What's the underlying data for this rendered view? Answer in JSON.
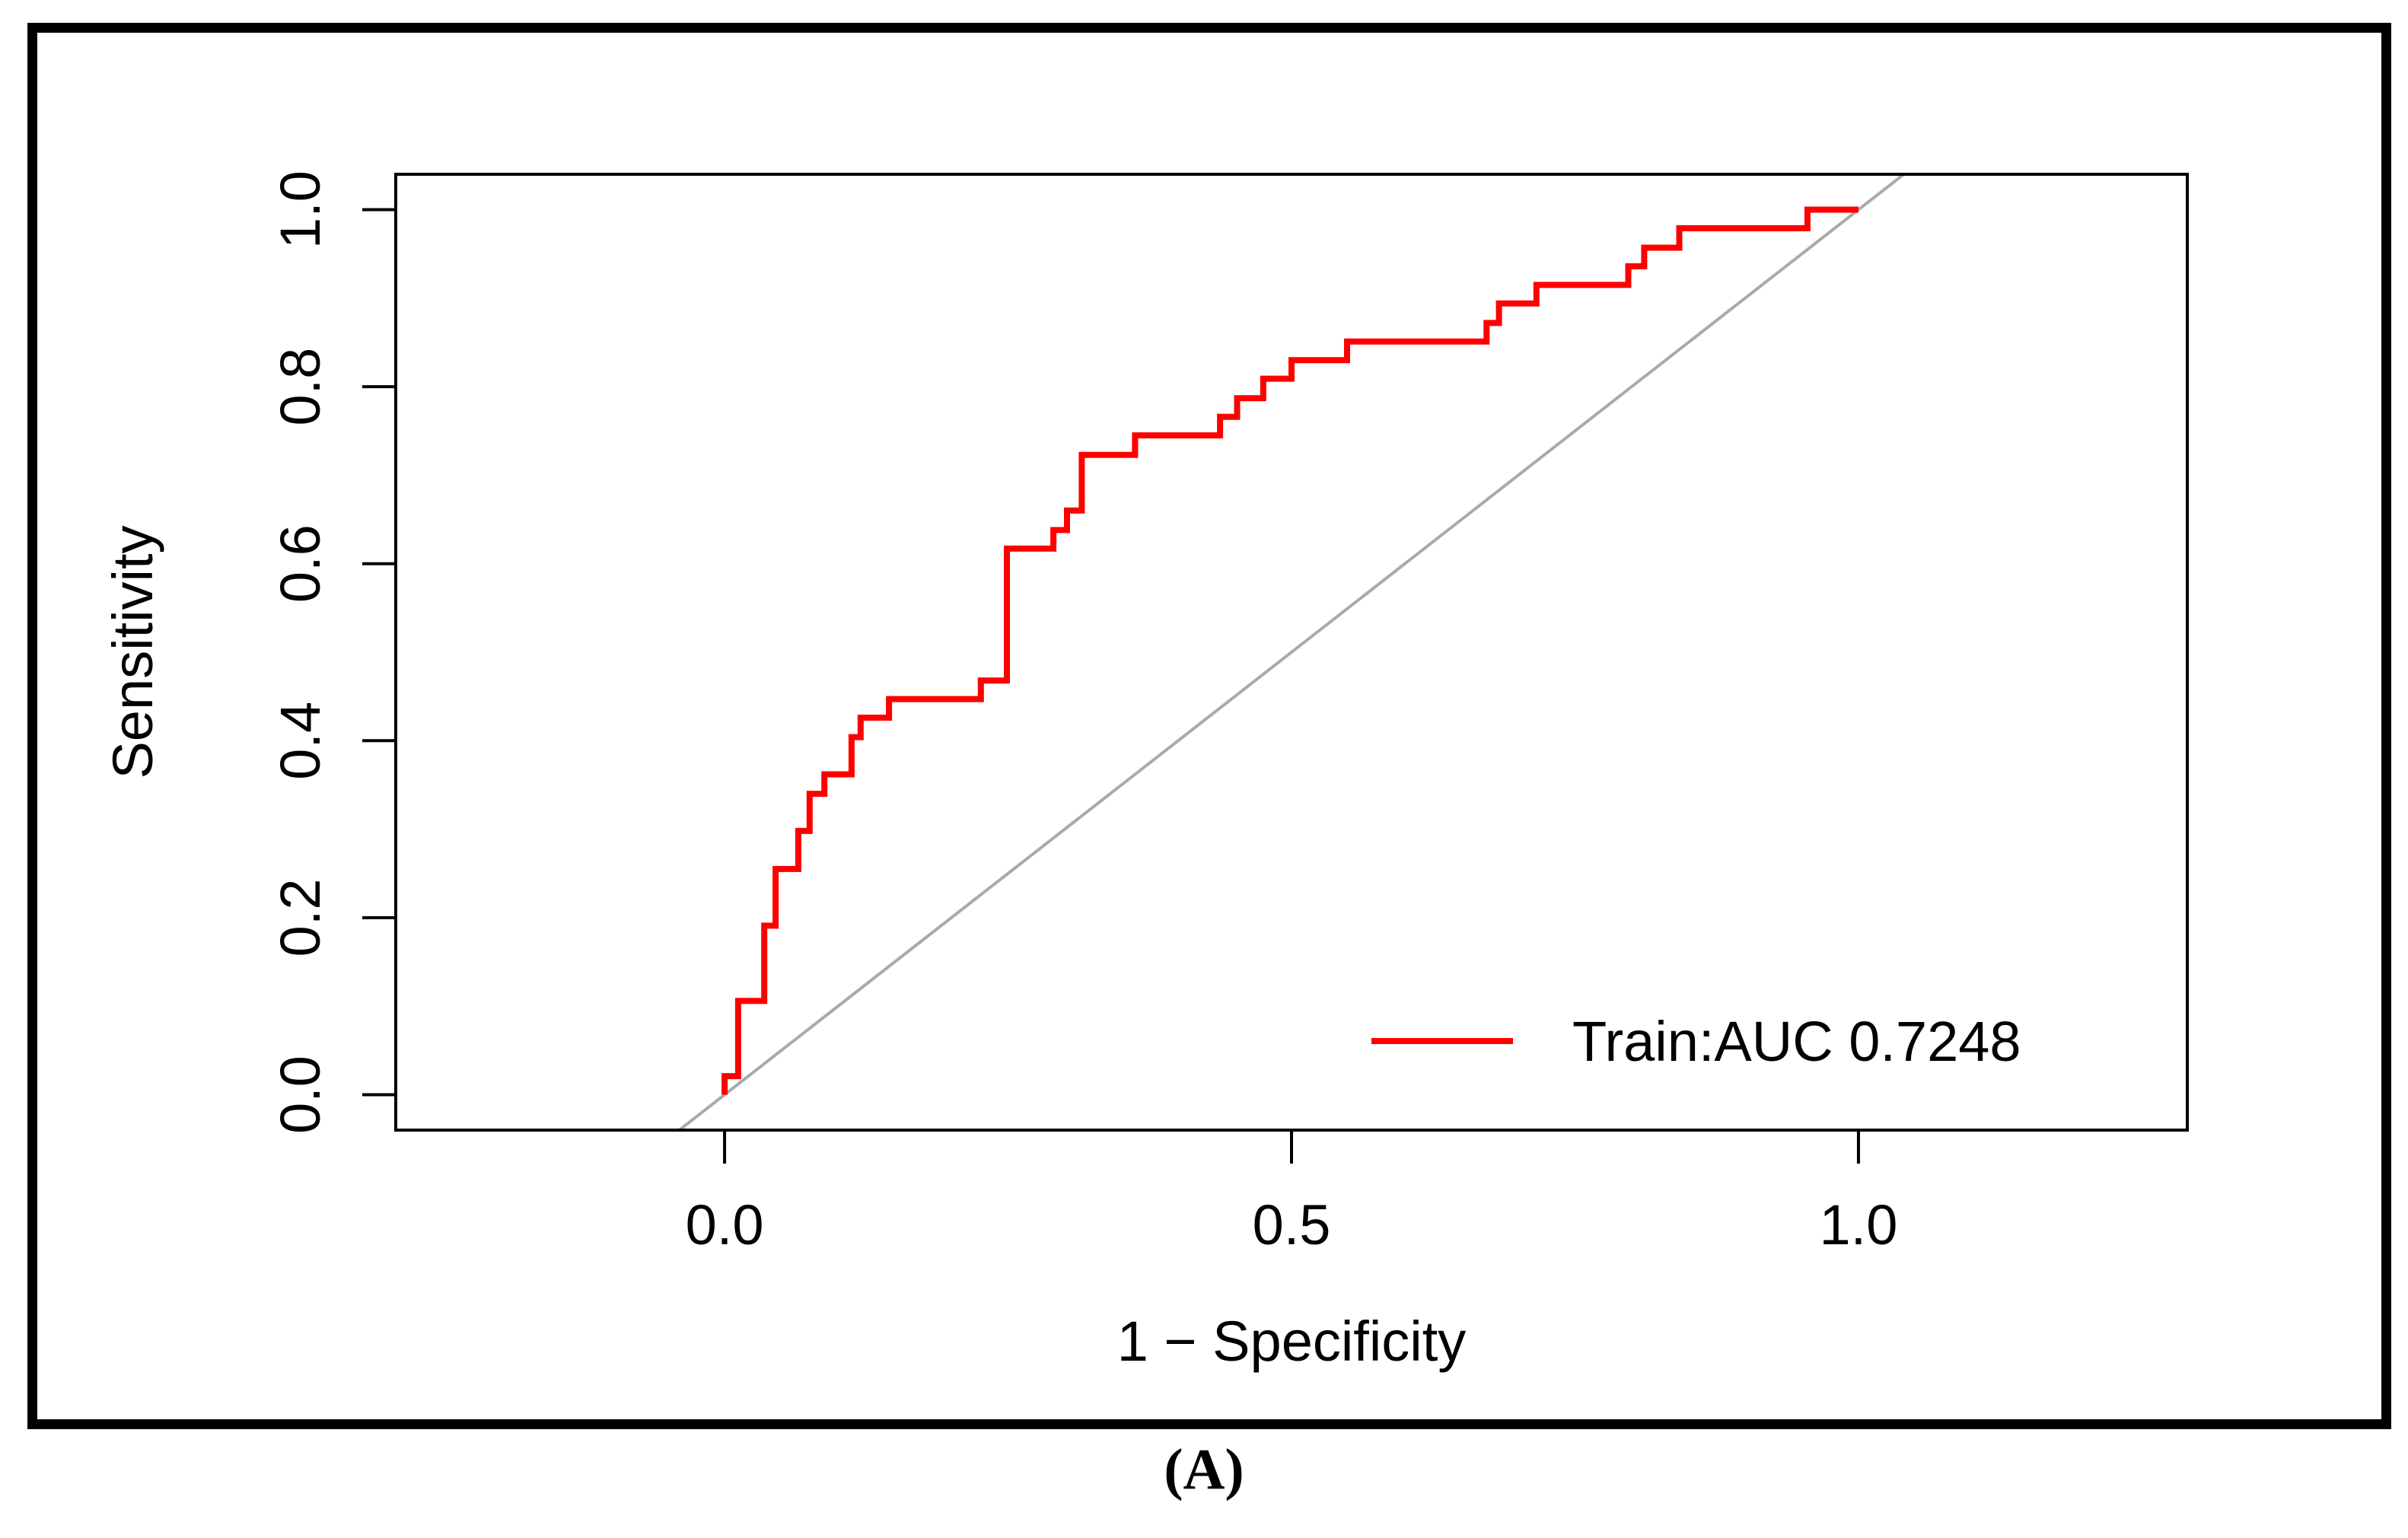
{
  "figure": {
    "caption": "(A)"
  },
  "chart_data": {
    "type": "line",
    "title": "",
    "xlabel": "1 − Specificity",
    "ylabel": "Sensitivity",
    "xlim": [
      -0.29,
      1.29
    ],
    "ylim": [
      -0.04,
      1.04
    ],
    "x_ticks": [
      "0.0",
      "0.5",
      "1.0"
    ],
    "x_tick_values": [
      0.0,
      0.5,
      1.0
    ],
    "y_ticks": [
      "0.0",
      "0.2",
      "0.4",
      "0.6",
      "0.8",
      "1.0"
    ],
    "y_tick_values": [
      0.0,
      0.2,
      0.4,
      0.6,
      0.8,
      1.0
    ],
    "grid": false,
    "legend_position": "bottom-right",
    "colors": {
      "roc": "#ff0000",
      "diagonal": "#aaaaaa",
      "axes": "#000000"
    },
    "series": [
      {
        "name": "Train:AUC 0.7248",
        "x": [
          0.0,
          0.0,
          0.012,
          0.012,
          0.035,
          0.035,
          0.045,
          0.045,
          0.065,
          0.065,
          0.075,
          0.075,
          0.088,
          0.088,
          0.112,
          0.112,
          0.12,
          0.12,
          0.145,
          0.145,
          0.226,
          0.226,
          0.249,
          0.249,
          0.29,
          0.29,
          0.302,
          0.302,
          0.315,
          0.315,
          0.362,
          0.362,
          0.437,
          0.437,
          0.452,
          0.452,
          0.475,
          0.475,
          0.5,
          0.5,
          0.549,
          0.549,
          0.672,
          0.672,
          0.683,
          0.683,
          0.716,
          0.716,
          0.797,
          0.797,
          0.811,
          0.811,
          0.842,
          0.842,
          0.955,
          0.955,
          1.0
        ],
        "y": [
          0.0,
          0.021,
          0.021,
          0.106,
          0.106,
          0.191,
          0.191,
          0.255,
          0.255,
          0.298,
          0.298,
          0.34,
          0.34,
          0.362,
          0.362,
          0.404,
          0.404,
          0.426,
          0.426,
          0.447,
          0.447,
          0.468,
          0.468,
          0.617,
          0.617,
          0.638,
          0.638,
          0.66,
          0.66,
          0.723,
          0.723,
          0.745,
          0.745,
          0.766,
          0.766,
          0.787,
          0.787,
          0.809,
          0.809,
          0.83,
          0.83,
          0.851,
          0.851,
          0.872,
          0.872,
          0.894,
          0.894,
          0.915,
          0.915,
          0.936,
          0.936,
          0.957,
          0.957,
          0.979,
          0.979,
          1.0,
          1.0
        ]
      }
    ],
    "reference_line": {
      "slope": 1,
      "intercept": 0
    }
  }
}
